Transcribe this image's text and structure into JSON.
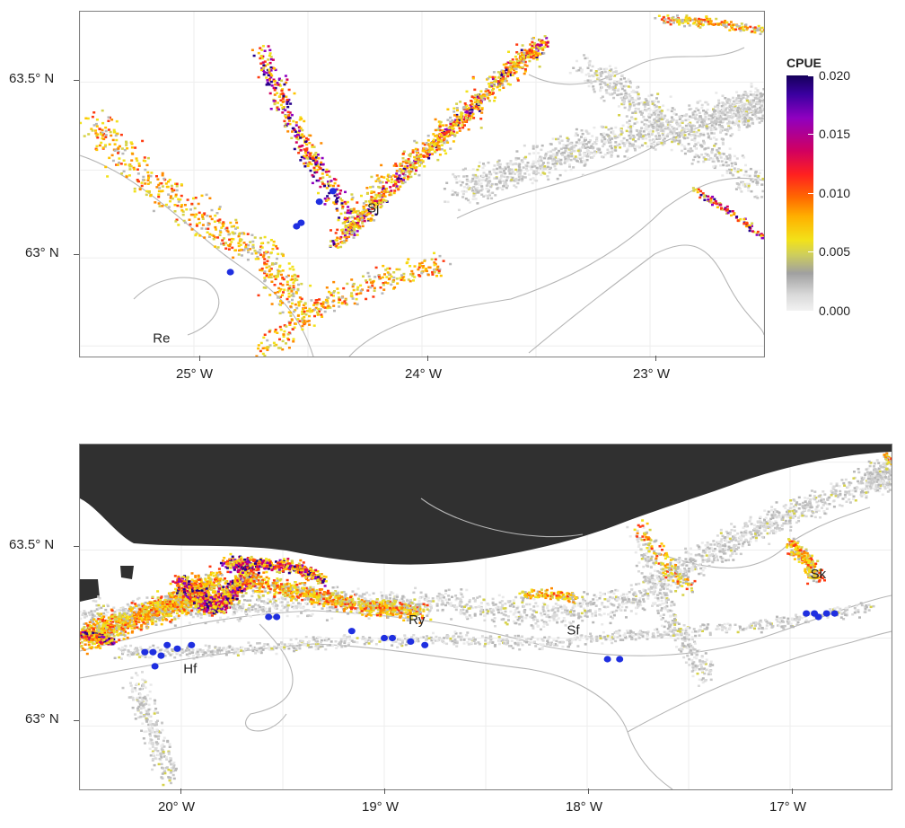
{
  "legend": {
    "title": "CPUE",
    "ticks": [
      "0.020",
      "0.015",
      "0.010",
      "0.005",
      "0.000"
    ]
  },
  "top_map": {
    "x_ticks": [
      "25° W",
      "24° W",
      "23° W"
    ],
    "y_ticks": [
      "63.5° N",
      "63° N"
    ],
    "places": [
      "Sj",
      "Re"
    ]
  },
  "bottom_map": {
    "x_ticks": [
      "20° W",
      "19° W",
      "18° W",
      "17° W"
    ],
    "y_ticks": [
      "63.5° N",
      "63° N"
    ],
    "places": [
      "Hf",
      "Ry",
      "Sf",
      "Sk"
    ]
  },
  "colors": {
    "land": "#303030",
    "contour": "#b5b5b5",
    "station": "#1f2fe0",
    "grid": "#eeeeee"
  },
  "chart_data": [
    {
      "type": "scatter",
      "title": "",
      "xlabel": "",
      "ylabel": "",
      "xlim": [
        -25.5,
        -22.5
      ],
      "ylim": [
        62.72,
        63.7
      ],
      "x_ticks": [
        -25,
        -24,
        -23
      ],
      "y_ticks": [
        63.0,
        63.5
      ],
      "color_scale": {
        "name": "CPUE",
        "range": [
          0.0,
          0.02
        ]
      },
      "places": [
        {
          "label": "Sj",
          "lon": -24.24,
          "lat": 63.13
        },
        {
          "label": "Re",
          "lon": -25.18,
          "lat": 62.76
        }
      ],
      "stations": [
        {
          "lon": -24.39,
          "lat": 63.19
        },
        {
          "lon": -24.45,
          "lat": 63.16
        },
        {
          "lon": -24.53,
          "lat": 63.1
        },
        {
          "lon": -24.55,
          "lat": 63.09
        },
        {
          "lon": -24.84,
          "lat": 62.96
        }
      ]
    },
    {
      "type": "scatter",
      "title": "",
      "xlabel": "",
      "ylabel": "",
      "xlim": [
        -20.5,
        -16.5
      ],
      "ylim": [
        62.82,
        63.8
      ],
      "x_ticks": [
        -20,
        -19,
        -18,
        -17
      ],
      "y_ticks": [
        63.0,
        63.5
      ],
      "color_scale": {
        "name": "CPUE",
        "range": [
          0.0,
          0.02
        ]
      },
      "places": [
        {
          "label": "Hf",
          "lon": -19.99,
          "lat": 63.15
        },
        {
          "label": "Ry",
          "lon": -18.88,
          "lat": 63.29
        },
        {
          "label": "Sf",
          "lon": -18.1,
          "lat": 63.26
        },
        {
          "label": "Sk",
          "lon": -16.9,
          "lat": 63.42
        }
      ],
      "stations": [
        {
          "lon": -20.18,
          "lat": 63.21
        },
        {
          "lon": -20.14,
          "lat": 63.21
        },
        {
          "lon": -20.1,
          "lat": 63.2
        },
        {
          "lon": -20.13,
          "lat": 63.17
        },
        {
          "lon": -20.07,
          "lat": 63.23
        },
        {
          "lon": -20.02,
          "lat": 63.22
        },
        {
          "lon": -19.95,
          "lat": 63.23
        },
        {
          "lon": -19.57,
          "lat": 63.31
        },
        {
          "lon": -19.53,
          "lat": 63.31
        },
        {
          "lon": -19.16,
          "lat": 63.27
        },
        {
          "lon": -19.0,
          "lat": 63.25
        },
        {
          "lon": -18.96,
          "lat": 63.25
        },
        {
          "lon": -18.87,
          "lat": 63.24
        },
        {
          "lon": -18.8,
          "lat": 63.23
        },
        {
          "lon": -17.9,
          "lat": 63.19
        },
        {
          "lon": -17.84,
          "lat": 63.19
        },
        {
          "lon": -16.92,
          "lat": 63.32
        },
        {
          "lon": -16.88,
          "lat": 63.32
        },
        {
          "lon": -16.86,
          "lat": 63.31
        },
        {
          "lon": -16.82,
          "lat": 63.32
        },
        {
          "lon": -16.78,
          "lat": 63.32
        }
      ]
    }
  ]
}
